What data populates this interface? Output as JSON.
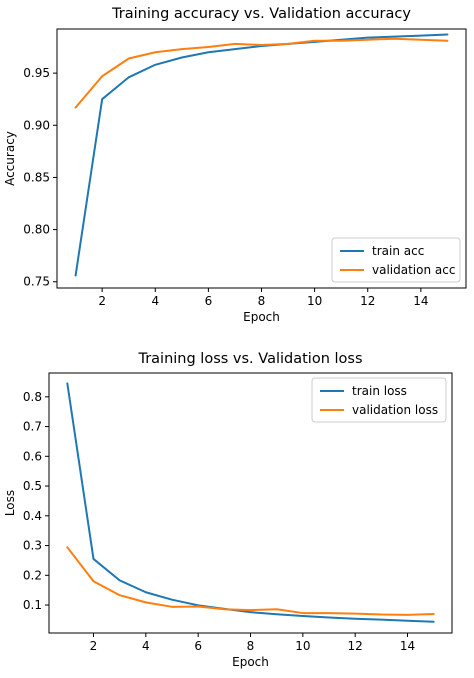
{
  "chart_data": [
    {
      "type": "line",
      "title": "Training accuracy vs. Validation accuracy",
      "xlabel": "Epoch",
      "ylabel": "Accuracy",
      "xlim": [
        0.3,
        15.7
      ],
      "ylim": [
        0.744,
        0.9923
      ],
      "xticks": [
        2,
        4,
        6,
        8,
        10,
        12,
        14
      ],
      "yticks": [
        0.75,
        0.8,
        0.85,
        0.9,
        0.95
      ],
      "ytick_labels": [
        "0.75",
        "0.80",
        "0.85",
        "0.90",
        "0.95"
      ],
      "legend_position": "lower right",
      "x": [
        1,
        2,
        3,
        4,
        5,
        6,
        7,
        8,
        9,
        10,
        11,
        12,
        13,
        14,
        15
      ],
      "series": [
        {
          "name": "train acc",
          "color": "#1f77b4",
          "values": [
            0.756,
            0.925,
            0.946,
            0.958,
            0.965,
            0.97,
            0.973,
            0.976,
            0.978,
            0.98,
            0.982,
            0.984,
            0.985,
            0.986,
            0.987
          ]
        },
        {
          "name": "validation acc",
          "color": "#ff7f0e",
          "values": [
            0.917,
            0.947,
            0.964,
            0.97,
            0.973,
            0.975,
            0.978,
            0.977,
            0.978,
            0.981,
            0.981,
            0.982,
            0.983,
            0.982,
            0.981
          ]
        }
      ]
    },
    {
      "type": "line",
      "title": "Training loss vs. Validation loss",
      "xlabel": "Epoch",
      "ylabel": "Loss",
      "xlim": [
        0.3,
        15.7
      ],
      "ylim": [
        0.006,
        0.88
      ],
      "xticks": [
        2,
        4,
        6,
        8,
        10,
        12,
        14
      ],
      "yticks": [
        0.1,
        0.2,
        0.3,
        0.4,
        0.5,
        0.6,
        0.7,
        0.8
      ],
      "ytick_labels": [
        "0.1",
        "0.2",
        "0.3",
        "0.4",
        "0.5",
        "0.6",
        "0.7",
        "0.8"
      ],
      "legend_position": "upper right",
      "x": [
        1,
        2,
        3,
        4,
        5,
        6,
        7,
        8,
        9,
        10,
        11,
        12,
        13,
        14,
        15
      ],
      "series": [
        {
          "name": "train loss",
          "color": "#1f77b4",
          "values": [
            0.845,
            0.255,
            0.183,
            0.143,
            0.118,
            0.099,
            0.087,
            0.076,
            0.069,
            0.063,
            0.058,
            0.054,
            0.051,
            0.047,
            0.044
          ]
        },
        {
          "name": "validation loss",
          "color": "#ff7f0e",
          "values": [
            0.294,
            0.18,
            0.133,
            0.109,
            0.094,
            0.095,
            0.086,
            0.083,
            0.086,
            0.073,
            0.073,
            0.071,
            0.068,
            0.067,
            0.07
          ]
        }
      ]
    }
  ]
}
